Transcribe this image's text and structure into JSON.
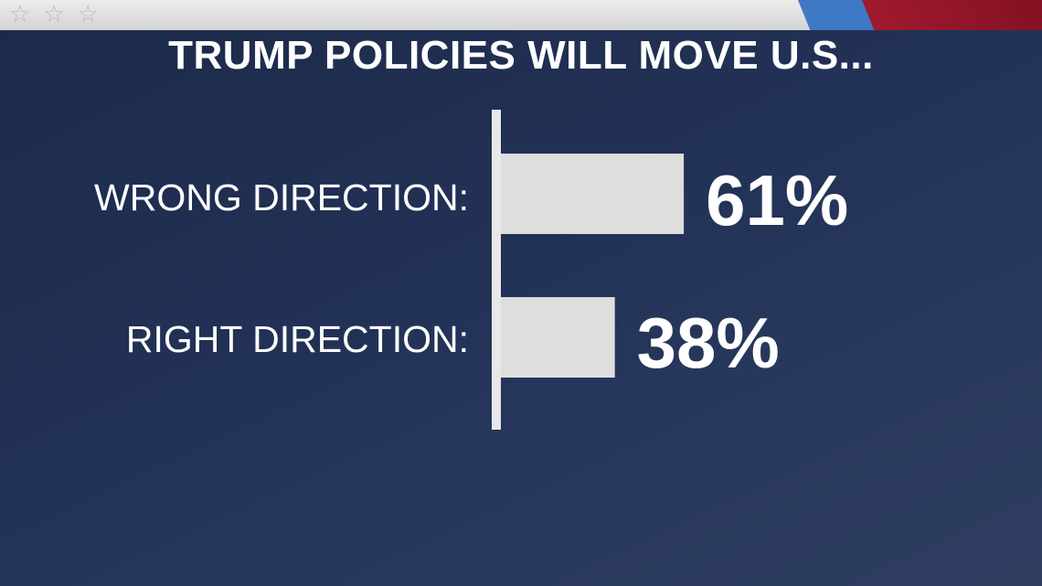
{
  "header": {
    "stars": [
      "☆",
      "☆",
      "☆"
    ],
    "colors": {
      "banner": "#dcdcdc",
      "stripe_blue": "#3f78c4",
      "stripe_red": "#a01a2e"
    }
  },
  "chart_data": {
    "type": "bar",
    "orientation": "horizontal",
    "title": "TRUMP POLICIES WILL MOVE U.S...",
    "categories": [
      "WRONG DIRECTION:",
      "RIGHT DIRECTION:"
    ],
    "values": [
      61,
      38
    ],
    "value_labels": [
      "61%",
      "38%"
    ],
    "xlim": [
      0,
      100
    ],
    "grid": false,
    "legend": "none",
    "colors": {
      "bar": "#dedede",
      "axis": "#e8e8e8",
      "text": "#ffffff",
      "background": "#223156"
    }
  }
}
